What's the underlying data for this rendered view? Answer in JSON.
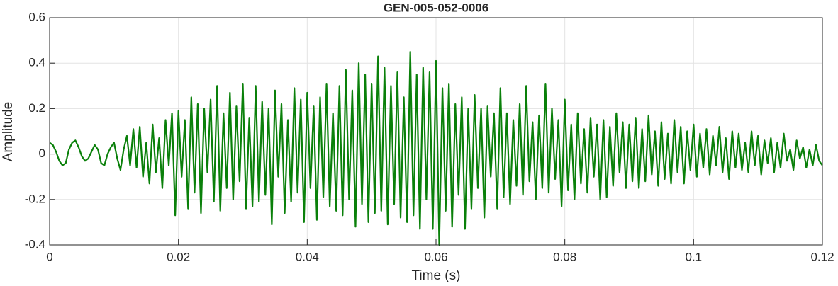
{
  "chart_data": {
    "type": "line",
    "title": "GEN-005-052-0006",
    "xlabel": "Time (s)",
    "ylabel": "Amplitude",
    "xlim": [
      0,
      0.12
    ],
    "xticks": [
      0,
      0.02,
      0.04,
      0.06,
      0.08,
      0.1,
      0.12
    ],
    "ylim": [
      -0.4,
      0.6
    ],
    "yticks": [
      -0.4,
      -0.2,
      0,
      0.2,
      0.4,
      0.6
    ],
    "grid": true,
    "x": [
      0,
      0.0005,
      0.001,
      0.0015,
      0.002,
      0.0025,
      0.003,
      0.0035,
      0.004,
      0.0045,
      0.005,
      0.0055,
      0.006,
      0.0065,
      0.007,
      0.0075,
      0.008,
      0.0085,
      0.009,
      0.0095,
      0.01,
      0.0105,
      0.011,
      0.0115,
      0.012,
      0.0125,
      0.013,
      0.0135,
      0.014,
      0.0145,
      0.015,
      0.0155,
      0.016,
      0.0165,
      0.017,
      0.0175,
      0.018,
      0.0185,
      0.019,
      0.0195,
      0.02,
      0.0205,
      0.021,
      0.0215,
      0.022,
      0.0225,
      0.023,
      0.0235,
      0.024,
      0.0245,
      0.025,
      0.0255,
      0.026,
      0.0265,
      0.027,
      0.0275,
      0.028,
      0.0285,
      0.029,
      0.0295,
      0.03,
      0.0305,
      0.031,
      0.0315,
      0.032,
      0.0325,
      0.033,
      0.0335,
      0.034,
      0.0345,
      0.035,
      0.0355,
      0.036,
      0.0365,
      0.037,
      0.0375,
      0.038,
      0.0385,
      0.039,
      0.0395,
      0.04,
      0.0405,
      0.041,
      0.0415,
      0.042,
      0.0425,
      0.043,
      0.0435,
      0.044,
      0.0445,
      0.045,
      0.0455,
      0.046,
      0.0465,
      0.047,
      0.0475,
      0.048,
      0.0485,
      0.049,
      0.0495,
      0.05,
      0.0505,
      0.051,
      0.0515,
      0.052,
      0.0525,
      0.053,
      0.0535,
      0.054,
      0.0545,
      0.055,
      0.0555,
      0.056,
      0.0565,
      0.057,
      0.0575,
      0.058,
      0.0585,
      0.059,
      0.0595,
      0.06,
      0.0605,
      0.061,
      0.0615,
      0.062,
      0.0625,
      0.063,
      0.0635,
      0.064,
      0.0645,
      0.065,
      0.0655,
      0.066,
      0.0665,
      0.067,
      0.0675,
      0.068,
      0.0685,
      0.069,
      0.0695,
      0.07,
      0.0705,
      0.071,
      0.0715,
      0.072,
      0.0725,
      0.073,
      0.0735,
      0.074,
      0.0745,
      0.075,
      0.0755,
      0.076,
      0.0765,
      0.077,
      0.0775,
      0.078,
      0.0785,
      0.079,
      0.0795,
      0.08,
      0.0805,
      0.081,
      0.0815,
      0.082,
      0.0825,
      0.083,
      0.0835,
      0.084,
      0.0845,
      0.085,
      0.0855,
      0.086,
      0.0865,
      0.087,
      0.0875,
      0.088,
      0.0885,
      0.089,
      0.0895,
      0.09,
      0.0905,
      0.091,
      0.0915,
      0.092,
      0.0925,
      0.093,
      0.0935,
      0.094,
      0.0945,
      0.095,
      0.0955,
      0.096,
      0.0965,
      0.097,
      0.0975,
      0.098,
      0.0985,
      0.099,
      0.0995,
      0.1,
      0.1005,
      0.101,
      0.1015,
      0.102,
      0.1025,
      0.103,
      0.1035,
      0.104,
      0.1045,
      0.105,
      0.1055,
      0.106,
      0.1065,
      0.107,
      0.1075,
      0.108,
      0.1085,
      0.109,
      0.1095,
      0.11,
      0.1105,
      0.111,
      0.1115,
      0.112,
      0.1125,
      0.113,
      0.1135,
      0.114,
      0.1145,
      0.115,
      0.1155,
      0.116,
      0.1165,
      0.117,
      0.1175,
      0.118,
      0.1185,
      0.119,
      0.1195,
      0.12
    ],
    "series": [
      {
        "color": "#0a800a",
        "values": [
          0.05,
          0.04,
          0.01,
          -0.03,
          -0.05,
          -0.04,
          0.02,
          0.05,
          0.06,
          0.03,
          -0.01,
          -0.03,
          -0.02,
          0.01,
          0.04,
          0.02,
          -0.04,
          -0.05,
          0.0,
          0.03,
          0.05,
          -0.02,
          -0.07,
          0.02,
          0.08,
          -0.05,
          0.11,
          -0.06,
          0.12,
          -0.1,
          0.05,
          -0.13,
          0.13,
          -0.08,
          0.07,
          -0.15,
          0.15,
          -0.05,
          0.18,
          -0.27,
          0.19,
          -0.1,
          0.15,
          -0.24,
          0.25,
          -0.17,
          0.22,
          -0.26,
          0.2,
          -0.08,
          0.24,
          -0.21,
          0.3,
          -0.25,
          0.18,
          -0.15,
          0.27,
          -0.2,
          0.21,
          -0.12,
          0.31,
          -0.24,
          0.16,
          -0.23,
          0.3,
          -0.21,
          0.23,
          -0.18,
          0.2,
          -0.31,
          0.28,
          -0.1,
          0.22,
          -0.26,
          0.15,
          -0.21,
          0.29,
          -0.17,
          0.24,
          -0.3,
          0.27,
          -0.15,
          0.21,
          -0.29,
          0.25,
          -0.19,
          0.31,
          -0.23,
          0.18,
          -0.25,
          0.3,
          -0.27,
          0.37,
          -0.2,
          0.28,
          -0.32,
          0.4,
          -0.22,
          0.35,
          -0.3,
          0.31,
          -0.26,
          0.43,
          -0.25,
          0.38,
          -0.31,
          0.3,
          -0.22,
          0.36,
          -0.28,
          0.25,
          -0.3,
          0.45,
          -0.27,
          0.35,
          -0.33,
          0.38,
          -0.2,
          0.36,
          -0.33,
          0.41,
          -0.4,
          0.29,
          -0.25,
          0.31,
          -0.32,
          0.22,
          -0.18,
          0.25,
          -0.33,
          0.2,
          -0.24,
          0.26,
          -0.15,
          0.2,
          -0.28,
          0.21,
          -0.1,
          0.18,
          -0.24,
          0.29,
          -0.19,
          0.18,
          -0.22,
          0.15,
          -0.14,
          0.22,
          -0.18,
          0.3,
          -0.12,
          0.14,
          -0.2,
          0.17,
          -0.15,
          0.31,
          -0.17,
          0.2,
          -0.11,
          0.15,
          -0.23,
          0.24,
          -0.16,
          0.13,
          -0.2,
          0.18,
          -0.13,
          0.11,
          -0.17,
          0.16,
          -0.1,
          0.13,
          -0.2,
          0.15,
          -0.19,
          0.12,
          -0.14,
          0.18,
          -0.08,
          0.14,
          -0.15,
          0.13,
          -0.12,
          0.16,
          -0.15,
          0.11,
          -0.12,
          0.17,
          -0.09,
          0.1,
          -0.14,
          0.14,
          -0.11,
          0.09,
          -0.13,
          0.15,
          -0.08,
          0.12,
          -0.13,
          0.1,
          -0.07,
          0.13,
          -0.1,
          0.09,
          -0.06,
          0.11,
          -0.09,
          0.08,
          -0.05,
          0.12,
          -0.08,
          0.07,
          -0.11,
          0.1,
          -0.06,
          0.09,
          -0.07,
          0.05,
          -0.08,
          0.1,
          -0.05,
          0.08,
          -0.09,
          0.06,
          -0.04,
          0.07,
          -0.08,
          0.05,
          -0.06,
          0.09,
          -0.03,
          0.02,
          -0.07,
          0.06,
          -0.02,
          0.03,
          -0.06,
          0.02,
          -0.05,
          0.04,
          -0.03,
          -0.05
        ]
      }
    ]
  }
}
